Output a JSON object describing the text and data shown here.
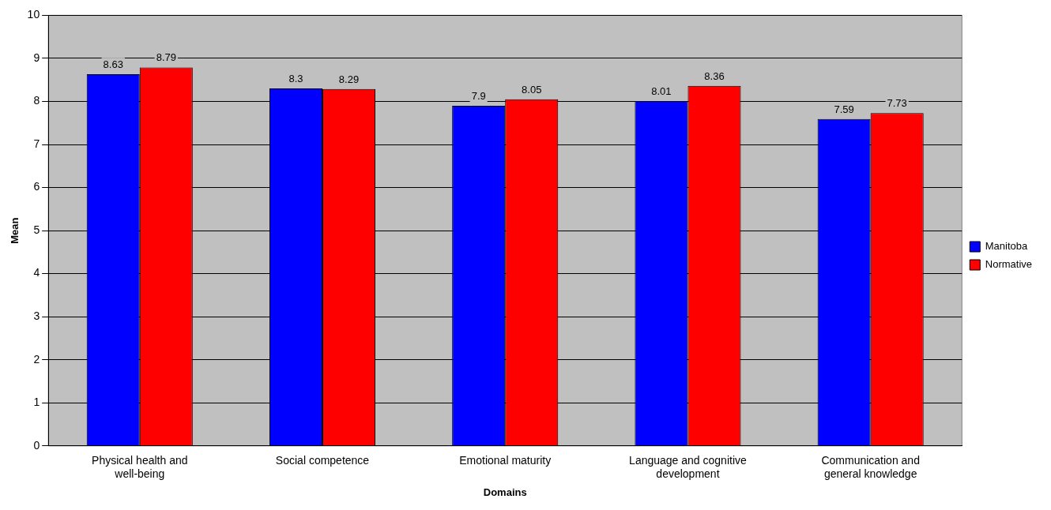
{
  "chart_data": {
    "type": "bar",
    "xlabel": "Domains",
    "ylabel": "Mean",
    "categories": [
      "Physical health and well-being",
      "Social competence",
      "Emotional maturity",
      "Language and cognitive development",
      "Communication and general knowledge"
    ],
    "series": [
      {
        "name": "Manitoba",
        "color": "#0000ff",
        "values": [
          8.63,
          8.3,
          7.9,
          8.01,
          7.59
        ]
      },
      {
        "name": "Normative",
        "color": "#ff0000",
        "values": [
          8.79,
          8.29,
          8.05,
          8.36,
          7.73
        ]
      }
    ],
    "ylim": [
      0,
      10
    ],
    "yticks": [
      0,
      1,
      2,
      3,
      4,
      5,
      6,
      7,
      8,
      9,
      10
    ],
    "grid": "y",
    "legend": "right",
    "data_labels": true
  }
}
